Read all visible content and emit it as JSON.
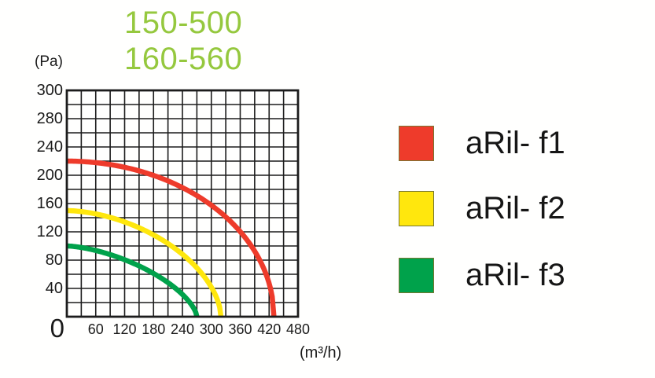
{
  "title": {
    "line1": "150-500",
    "line2": "160-560",
    "color": "#95c83e"
  },
  "axes": {
    "y": {
      "unit": "(Pa)",
      "tick_labels": [
        "300",
        "280",
        "240",
        "200",
        "160",
        "120",
        "80",
        "40"
      ],
      "origin_label": "0"
    },
    "x": {
      "unit": "(m³/h)",
      "tick_labels": [
        "60",
        "120",
        "180",
        "240",
        "300",
        "360",
        "420",
        "480"
      ]
    }
  },
  "legend": {
    "items": [
      {
        "label": "aRil- f1",
        "color": "#ee3b2b"
      },
      {
        "label": "aRil- f2",
        "color": "#ffe70d"
      },
      {
        "label": "aRil- f3",
        "color": "#00a24b"
      }
    ]
  },
  "chart_data": {
    "type": "line",
    "title": "150-500 160-560",
    "xlabel": "(m³/h)",
    "ylabel": "(Pa)",
    "x_range": [
      0,
      480
    ],
    "y_range": [
      0,
      300
    ],
    "grid": {
      "on": true,
      "cols": 16,
      "rows": 16,
      "x_per_cell": 30,
      "y_per_cell": 20,
      "line_color": "#1c1c1c"
    },
    "legend_position": "right",
    "series": [
      {
        "name": "aRil- f1",
        "color": "#ee3b2b",
        "shutoff_pressure_pa": 220,
        "max_flow_m3h": 430,
        "curve_exponent": 2.0,
        "points": [
          [
            0,
            220
          ],
          [
            30,
            220
          ],
          [
            60,
            218
          ],
          [
            90,
            215
          ],
          [
            120,
            211
          ],
          [
            150,
            206
          ],
          [
            180,
            200
          ],
          [
            210,
            192
          ],
          [
            240,
            183
          ],
          [
            270,
            171
          ],
          [
            300,
            158
          ],
          [
            330,
            141
          ],
          [
            360,
            120
          ],
          [
            390,
            93
          ],
          [
            420,
            47
          ],
          [
            430,
            0
          ]
        ]
      },
      {
        "name": "aRil- f2",
        "color": "#ffe70d",
        "shutoff_pressure_pa": 150,
        "max_flow_m3h": 320,
        "curve_exponent": 1.75,
        "points": [
          [
            0,
            150
          ],
          [
            30,
            149
          ],
          [
            60,
            145
          ],
          [
            90,
            140
          ],
          [
            120,
            134
          ],
          [
            150,
            126
          ],
          [
            180,
            116
          ],
          [
            210,
            103
          ],
          [
            240,
            88
          ],
          [
            270,
            69
          ],
          [
            300,
            42
          ],
          [
            320,
            0
          ]
        ]
      },
      {
        "name": "aRil- f3",
        "color": "#00a24b",
        "shutoff_pressure_pa": 100,
        "max_flow_m3h": 270,
        "curve_exponent": 1.55,
        "points": [
          [
            0,
            100
          ],
          [
            30,
            98
          ],
          [
            60,
            94
          ],
          [
            90,
            88
          ],
          [
            120,
            81
          ],
          [
            150,
            72
          ],
          [
            180,
            61
          ],
          [
            210,
            48
          ],
          [
            240,
            32
          ],
          [
            270,
            0
          ]
        ]
      }
    ]
  }
}
